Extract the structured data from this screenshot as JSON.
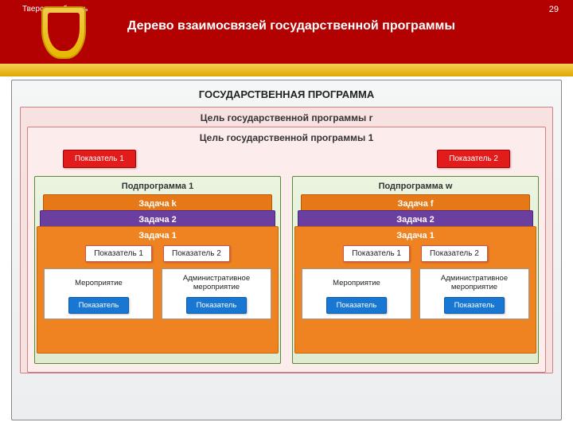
{
  "header": {
    "region": "Тверская область",
    "page": "29",
    "title": "Дерево взаимосвязей государственной программы"
  },
  "colors": {
    "header_bg": "#b30000",
    "shield_outer": "#e6b800",
    "shield_inner": "#b30000",
    "outer_box_bg": "#eceeef",
    "goal_r_bg": "#f7e1e1",
    "goal_1_bg": "#fcecec",
    "ind_badge": "#e21b1b",
    "subprog_bg": "#dfeccf",
    "task_orange": "#ef8321",
    "task_purple": "#6b3fa0",
    "task_orange2": "#e67817",
    "act_ind": "#1877d3"
  },
  "tree": {
    "program_title": "ГОСУДАРСТВЕННАЯ ПРОГРАММА",
    "goal_r": "Цель государственной программы r",
    "goal_1": "Цель государственной программы 1",
    "indicators": {
      "i1": "Показатель 1",
      "i2": "Показатель 2"
    },
    "subprograms": [
      {
        "title": "Подпрограмма 1",
        "task_k": "Задача k",
        "task_2": "Задача 2",
        "task_1": "Задача 1",
        "mini": {
          "m1": "Показатель 1",
          "m2": "Показатель 2"
        },
        "acts": {
          "a1": {
            "label": "Мероприятие",
            "ind": "Показатель"
          },
          "a2": {
            "label": "Административное мероприятие",
            "ind": "Показатель"
          }
        }
      },
      {
        "title": "Подпрограмма w",
        "task_k": "Задача f",
        "task_2": "Задача 2",
        "task_1": "Задача 1",
        "mini": {
          "m1": "Показатель 1",
          "m2": "Показатель 2"
        },
        "acts": {
          "a1": {
            "label": "Мероприятие",
            "ind": "Показатель"
          },
          "a2": {
            "label": "Административное мероприятие",
            "ind": "Показатель"
          }
        }
      }
    ]
  }
}
